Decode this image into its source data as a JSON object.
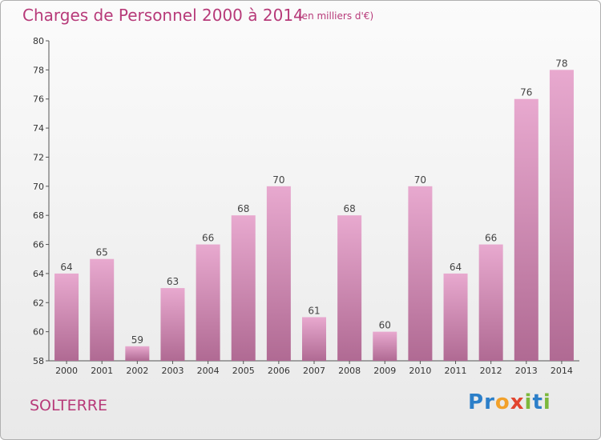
{
  "header": {
    "title": "Charges de Personnel 2000 à 2014",
    "subtitle": "(en milliers d'€)"
  },
  "footer": {
    "place": "SOLTERRE",
    "logo": "Proxiti"
  },
  "colors": {
    "title": "#b73a79",
    "bar_top": "#e8a9cf",
    "bar_bottom": "#b06a93"
  },
  "chart_data": {
    "type": "bar",
    "title": "Charges de Personnel 2000 à 2014",
    "subtitle": "(en milliers d'€)",
    "categories": [
      "2000",
      "2001",
      "2002",
      "2003",
      "2004",
      "2005",
      "2006",
      "2007",
      "2008",
      "2009",
      "2010",
      "2011",
      "2012",
      "2013",
      "2014"
    ],
    "values": [
      64,
      65,
      59,
      63,
      66,
      68,
      70,
      61,
      68,
      60,
      70,
      64,
      66,
      76,
      78
    ],
    "ylim": [
      58,
      80
    ],
    "yticks": [
      58,
      60,
      62,
      64,
      66,
      68,
      70,
      72,
      74,
      76,
      78,
      80
    ],
    "grid": false,
    "data_labels": true
  }
}
